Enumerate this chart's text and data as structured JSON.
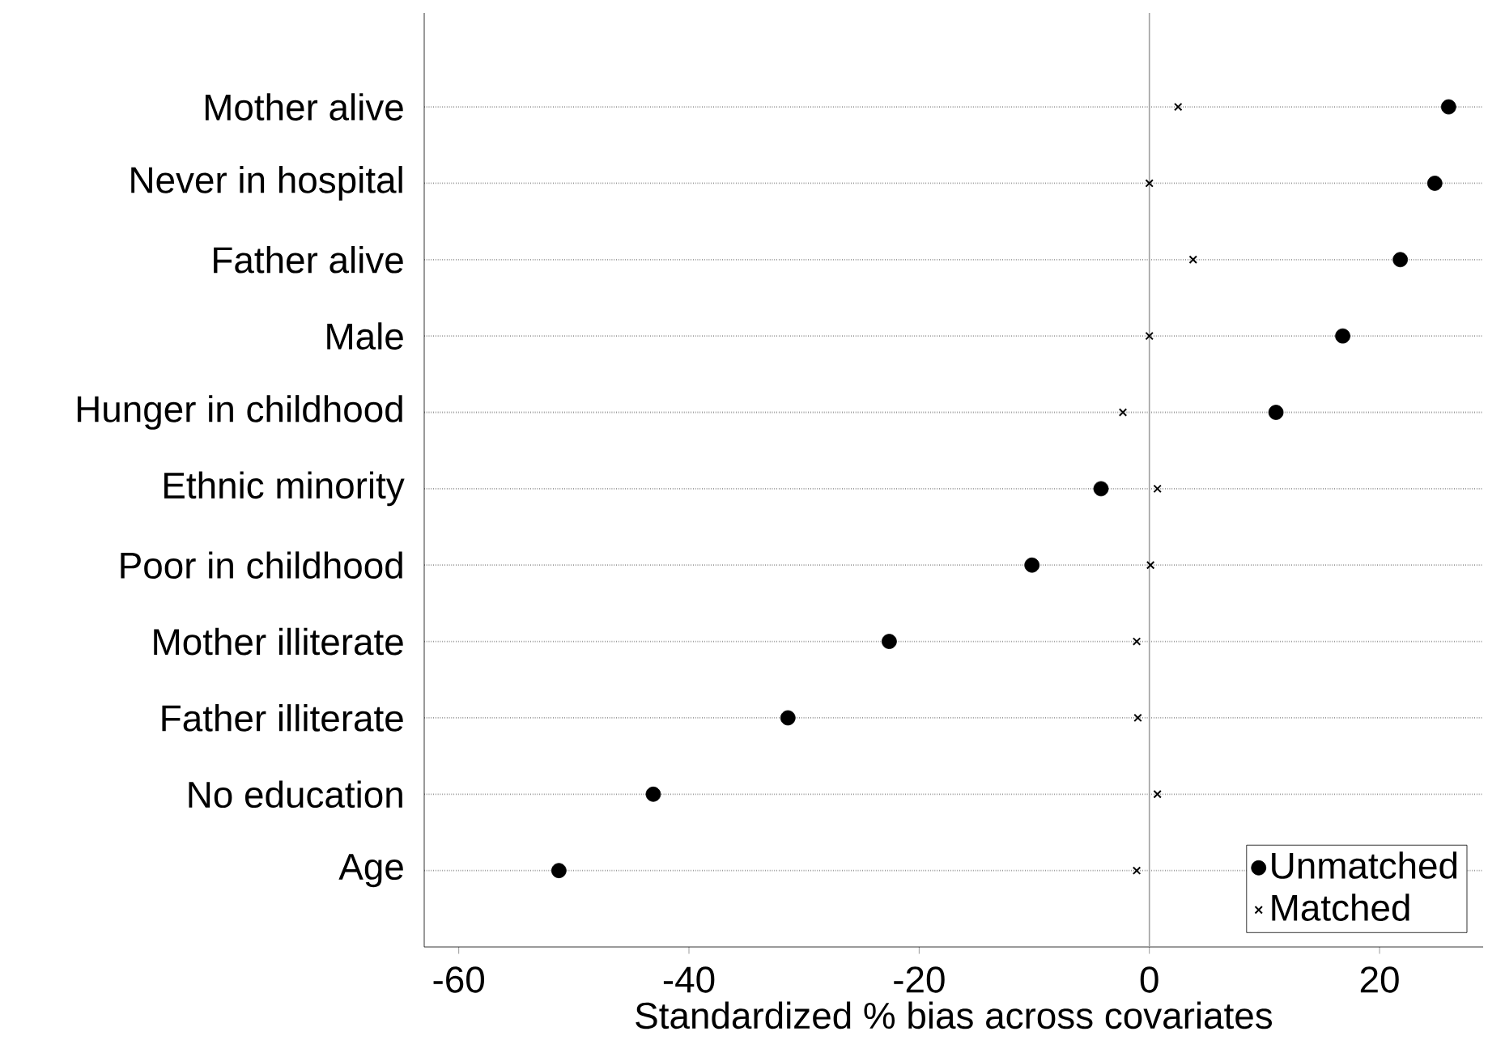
{
  "chart_data": {
    "type": "scatter",
    "orientation": "horizontal",
    "xlabel": "Standardized % bias across covariates",
    "categories": [
      "Mother alive",
      "Never in hospital",
      "Father alive",
      "Male",
      "Hunger in childhood",
      "Ethnic minority",
      "Poor in childhood",
      "Mother illiterate",
      "Father illiterate",
      "No education",
      "Age"
    ],
    "series": [
      {
        "name": "Unmatched",
        "color": "#000000",
        "marker": "circle",
        "values": [
          26.0,
          24.8,
          21.8,
          16.8,
          11.0,
          -4.2,
          -10.2,
          -22.6,
          -31.4,
          -43.1,
          -51.3
        ]
      },
      {
        "name": "Matched",
        "color": "#000000",
        "marker": "cross",
        "values": [
          2.5,
          0.0,
          3.8,
          0.0,
          -2.3,
          0.7,
          0.1,
          -1.1,
          -1.0,
          0.7,
          -1.1
        ]
      }
    ],
    "xlim": [
      -63,
      29
    ],
    "xticks": [
      -60,
      -40,
      -20,
      0,
      20
    ],
    "ref_lines": [
      {
        "axis": "x",
        "value": 0,
        "color": "#a0a0a0"
      }
    ],
    "grid": "y",
    "legend": "bottom right"
  }
}
